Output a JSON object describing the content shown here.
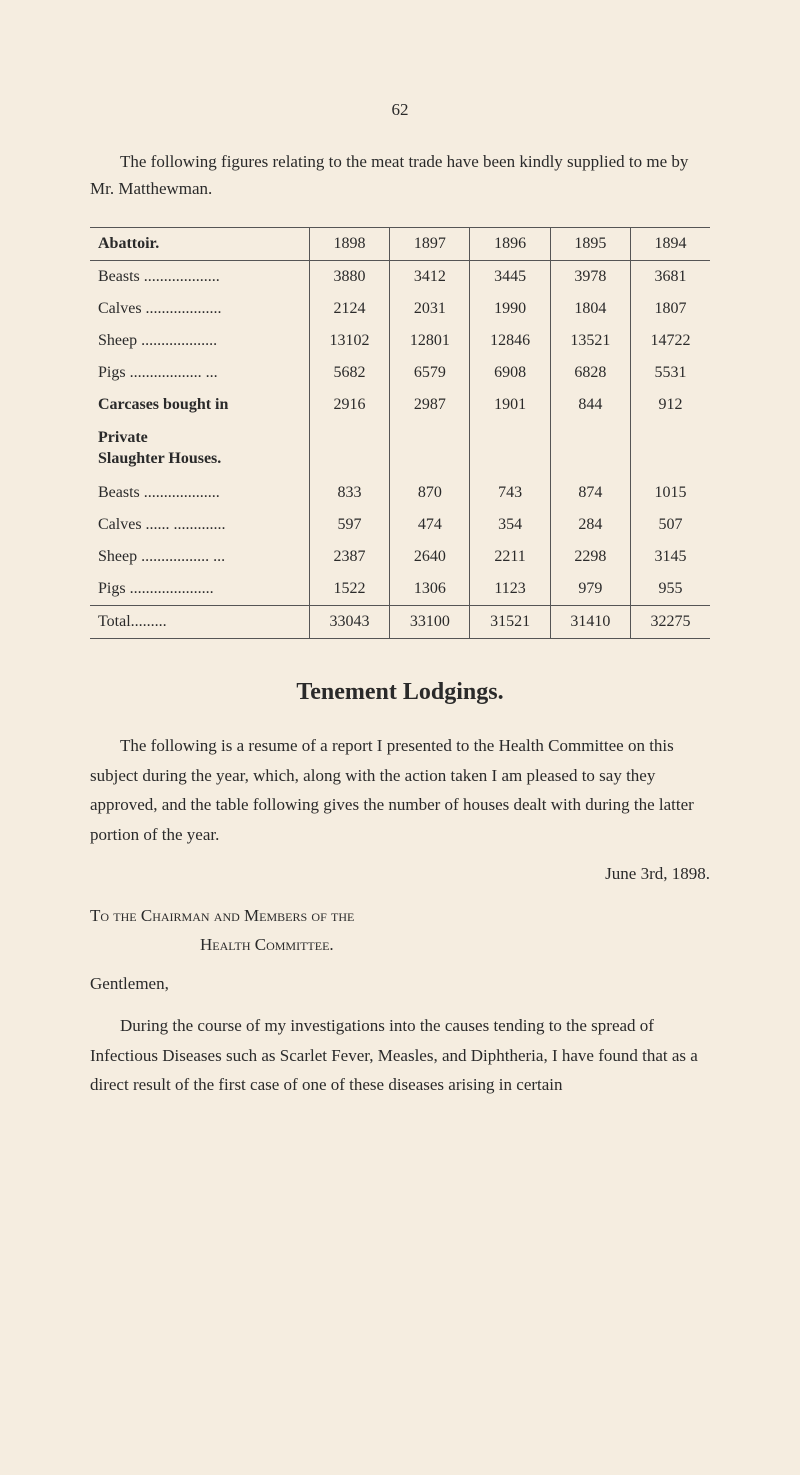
{
  "pageNumber": "62",
  "intro": "The following figures relating to the meat trade have been kindly supplied to me by Mr. Matthewman.",
  "table": {
    "headers": [
      "Abattoir.",
      "1898",
      "1897",
      "1896",
      "1895",
      "1894"
    ],
    "abattoir": [
      {
        "label": "Beasts",
        "values": [
          "3880",
          "3412",
          "3445",
          "3978",
          "3681"
        ]
      },
      {
        "label": "Calves",
        "values": [
          "2124",
          "2031",
          "1990",
          "1804",
          "1807"
        ]
      },
      {
        "label": "Sheep",
        "values": [
          "13102",
          "12801",
          "12846",
          "13521",
          "14722"
        ]
      },
      {
        "label": "Pigs",
        "values": [
          "5682",
          "6579",
          "6908",
          "6828",
          "5531"
        ]
      }
    ],
    "carcasesLabel": "Carcases bought in",
    "carcases": [
      "2916",
      "2987",
      "1901",
      "844",
      "912"
    ],
    "privateLabel1": "Private",
    "privateLabel2": "Slaughter Houses.",
    "private": [
      {
        "label": "Beasts",
        "values": [
          "833",
          "870",
          "743",
          "874",
          "1015"
        ]
      },
      {
        "label": "Calves",
        "values": [
          "597",
          "474",
          "354",
          "284",
          "507"
        ]
      },
      {
        "label": "Sheep",
        "values": [
          "2387",
          "2640",
          "2211",
          "2298",
          "3145"
        ]
      },
      {
        "label": "Pigs",
        "values": [
          "1522",
          "1306",
          "1123",
          "979",
          "955"
        ]
      }
    ],
    "totalLabel": "Total",
    "total": [
      "33043",
      "33100",
      "31521",
      "31410",
      "32275"
    ]
  },
  "sectionTitle": "Tenement Lodgings.",
  "para1": "The following is a resume of a report I presented to the Health Committee on this subject during the year, which, along with the action taken I am pleased to say they approved, and the table following gives the number of houses dealt with during the latter portion of the year.",
  "date": "June 3rd, 1898.",
  "addressLine1": "To the Chairman and Members of the",
  "addressLine2": "Health Committee.",
  "salutation": "Gentlemen,",
  "para2": "During the course of my investigations into the causes tending to the spread of Infectious Diseases such as Scarlet Fever, Measles, and Diphtheria, I have found that as a direct result of the first case of one of these diseases arising in certain"
}
